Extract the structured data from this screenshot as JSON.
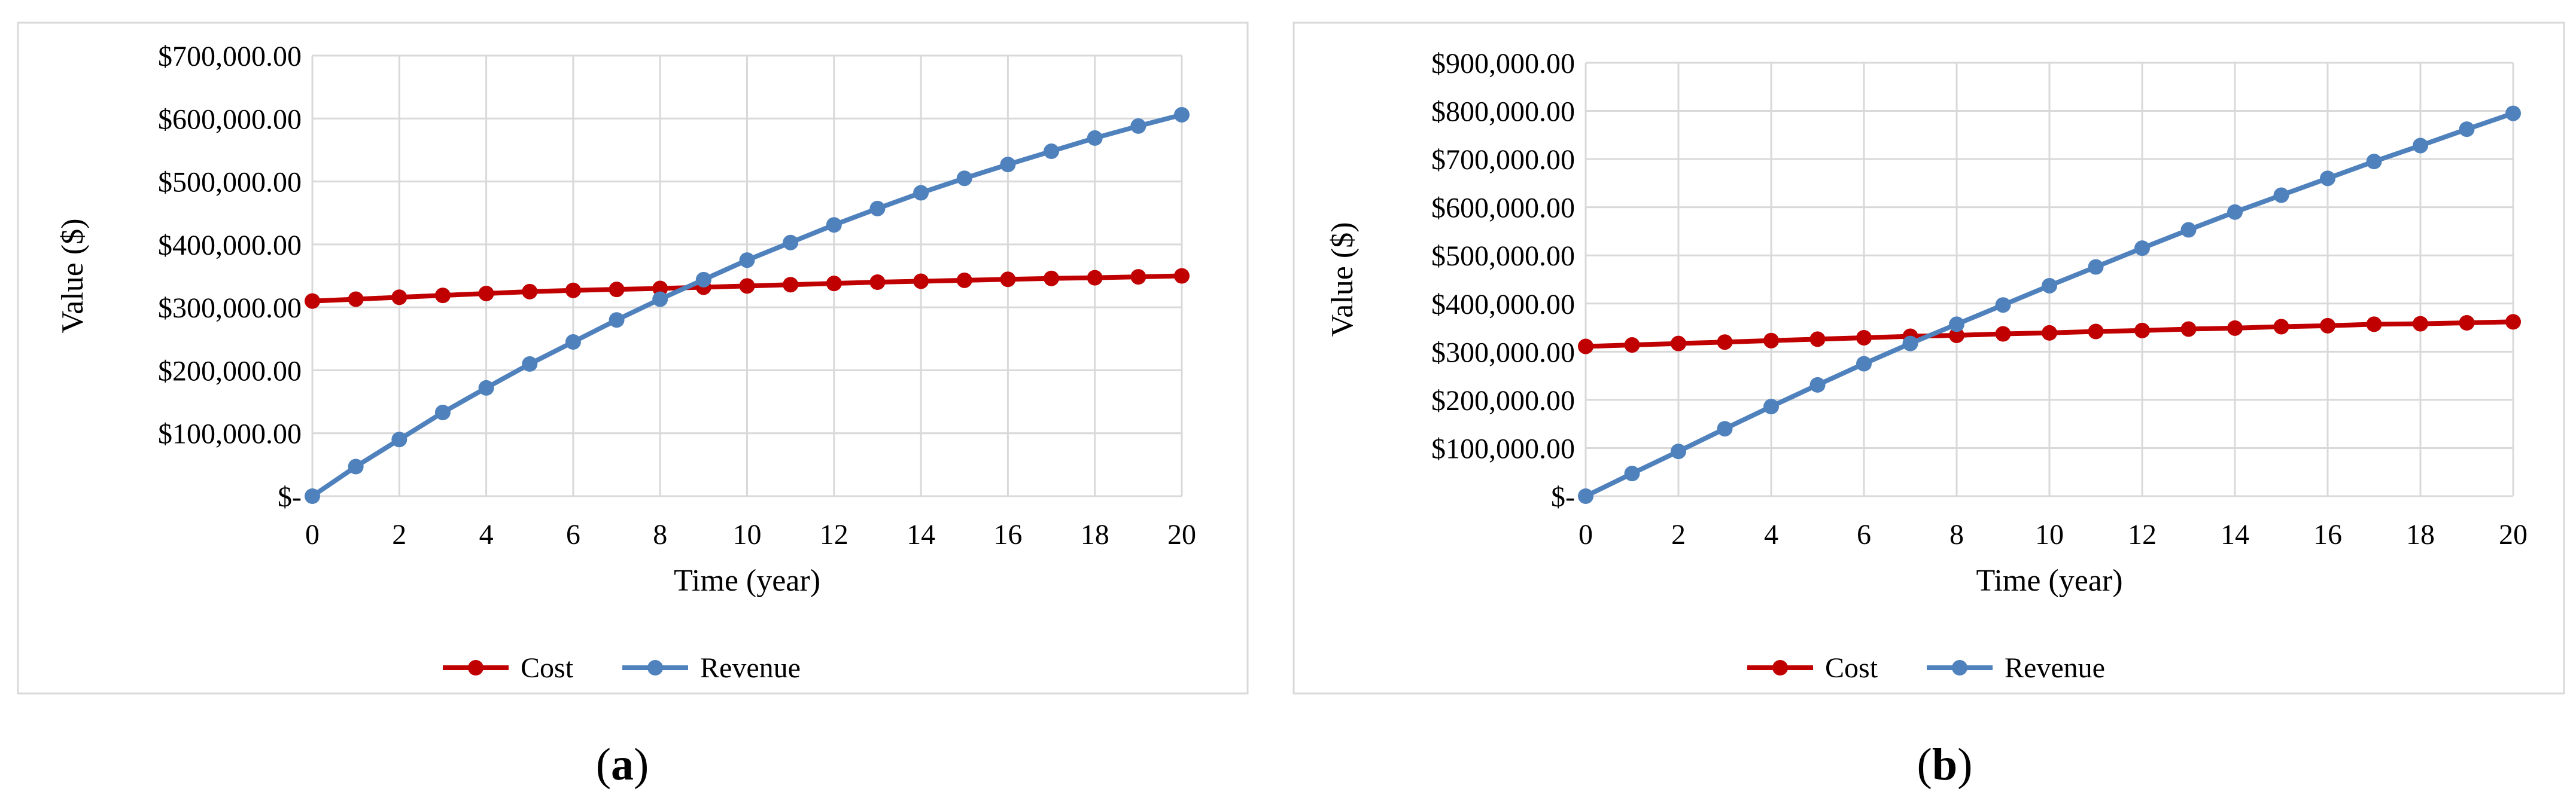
{
  "panels": [
    {
      "label": "a",
      "chart_data": {
        "type": "line",
        "title": "",
        "xlabel": "Time (year)",
        "ylabel": "Value ($)",
        "xlim": [
          0,
          20
        ],
        "ylim": [
          0,
          700000
        ],
        "x_ticks": [
          0,
          2,
          4,
          6,
          8,
          10,
          12,
          14,
          16,
          18,
          20
        ],
        "y_tick_values": [
          0,
          100000,
          200000,
          300000,
          400000,
          500000,
          600000,
          700000
        ],
        "y_tick_labels": [
          "$-",
          "$100,000.00",
          "$200,000.00",
          "$300,000.00",
          "$400,000.00",
          "$500,000.00",
          "$600,000.00",
          "$700,000.00"
        ],
        "grid": true,
        "legend": "bottom",
        "x": [
          0,
          1,
          2,
          3,
          4,
          5,
          6,
          7,
          8,
          9,
          10,
          11,
          12,
          13,
          14,
          15,
          16,
          17,
          18,
          19,
          20
        ],
        "series": [
          {
            "name": "Cost",
            "color": "#c00000",
            "values": [
              310000,
              313000,
              316000,
              319000,
              322000,
              325000,
              327000,
              328500,
              330000,
              332000,
              334000,
              336000,
              338000,
              340000,
              341500,
              343000,
              344500,
              346000,
              347000,
              348500,
              350000
            ]
          },
          {
            "name": "Revenue",
            "color": "#4f81bd",
            "values": [
              0,
              47000,
              90000,
              133000,
              172000,
              210000,
              245000,
              280000,
              313000,
              344000,
              375000,
              403000,
              431000,
              457000,
              482000,
              505000,
              527000,
              548000,
              569000,
              588000,
              606000
            ]
          }
        ]
      }
    },
    {
      "label": "b",
      "chart_data": {
        "type": "line",
        "title": "",
        "xlabel": "Time (year)",
        "ylabel": "Value ($)",
        "xlim": [
          0,
          20
        ],
        "ylim": [
          0,
          900000
        ],
        "x_ticks": [
          0,
          2,
          4,
          6,
          8,
          10,
          12,
          14,
          16,
          18,
          20
        ],
        "y_tick_values": [
          0,
          100000,
          200000,
          300000,
          400000,
          500000,
          600000,
          700000,
          800000,
          900000
        ],
        "y_tick_labels": [
          "$-",
          "$100,000.00",
          "$200,000.00",
          "$300,000.00",
          "$400,000.00",
          "$500,000.00",
          "$600,000.00",
          "$700,000.00",
          "$800,000.00",
          "$900,000.00"
        ],
        "grid": true,
        "legend": "bottom",
        "x": [
          0,
          1,
          2,
          3,
          4,
          5,
          6,
          7,
          8,
          9,
          10,
          11,
          12,
          13,
          14,
          15,
          16,
          17,
          18,
          19,
          20
        ],
        "series": [
          {
            "name": "Cost",
            "color": "#c00000",
            "values": [
              311000,
              314000,
              317000,
              320000,
              323000,
              326000,
              329000,
              332000,
              334000,
              337000,
              339000,
              342000,
              344000,
              347000,
              349000,
              352000,
              354000,
              357000,
              358000,
              360000,
              362000
            ]
          },
          {
            "name": "Revenue",
            "color": "#4f81bd",
            "values": [
              0,
              47000,
              93000,
              140000,
              186000,
              231000,
              275000,
              317000,
              357000,
              397000,
              437000,
              476000,
              515000,
              553000,
              590000,
              625000,
              660000,
              695000,
              728000,
              762000,
              795000
            ]
          }
        ]
      }
    }
  ]
}
